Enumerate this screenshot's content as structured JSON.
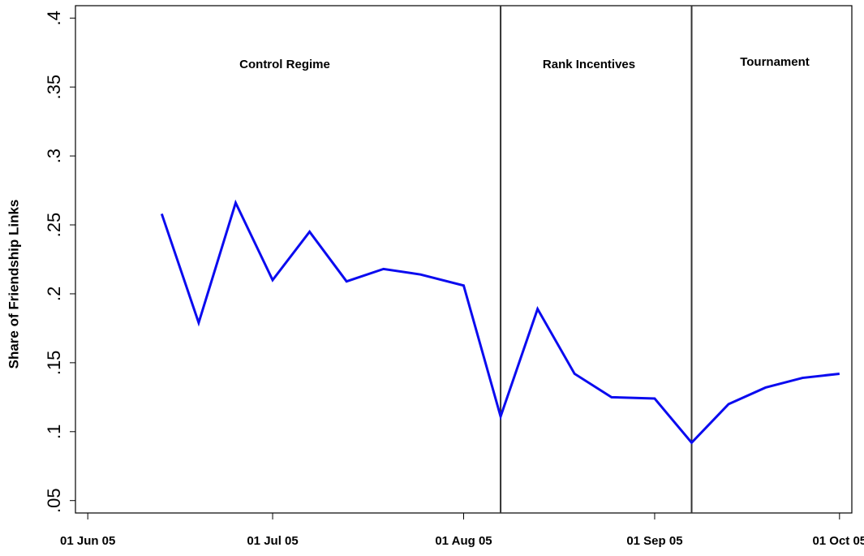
{
  "chart_data": {
    "type": "line",
    "y_label": "Share of Friendship Links",
    "x": [
      "2005-06-13",
      "2005-06-19",
      "2005-06-25",
      "2005-07-01",
      "2005-07-07",
      "2005-07-13",
      "2005-07-19",
      "2005-07-25",
      "2005-08-01",
      "2005-08-07",
      "2005-08-13",
      "2005-08-19",
      "2005-08-25",
      "2005-09-01",
      "2005-09-07",
      "2005-09-13",
      "2005-09-19",
      "2005-09-25",
      "2005-10-01"
    ],
    "series": [
      {
        "color": "#0b0bef",
        "values": [
          0.258,
          0.179,
          0.266,
          0.21,
          0.245,
          0.209,
          0.218,
          0.214,
          0.206,
          0.111,
          0.189,
          0.142,
          0.125,
          0.124,
          0.092,
          0.12,
          0.132,
          0.139,
          0.142
        ]
      }
    ],
    "xlim": [
      "2005-05-30",
      "2005-10-03"
    ],
    "xticks": [
      {
        "value": "2005-06-01",
        "label": "01  Jun 05"
      },
      {
        "value": "2005-07-01",
        "label": "01  Jul 05"
      },
      {
        "value": "2005-08-01",
        "label": "01  Aug 05"
      },
      {
        "value": "2005-09-01",
        "label": "01  Sep 05"
      },
      {
        "value": "2005-10-01",
        "label": "01  Oct 05"
      }
    ],
    "ylim": [
      0.041,
      0.409
    ],
    "yticks": [
      {
        "value": 0.05,
        "label": ".05"
      },
      {
        "value": 0.1,
        "label": ".1"
      },
      {
        "value": 0.15,
        "label": ".15"
      },
      {
        "value": 0.2,
        "label": ".2"
      },
      {
        "value": 0.25,
        "label": ".25"
      },
      {
        "value": 0.3,
        "label": ".3"
      },
      {
        "value": 0.35,
        "label": ".35"
      },
      {
        "value": 0.4,
        "label": ".4"
      }
    ],
    "vlines": [
      "2005-08-07",
      "2005-09-07"
    ],
    "annotations": [
      "Control Regime",
      "Rank Incentives",
      "Tournament"
    ]
  }
}
